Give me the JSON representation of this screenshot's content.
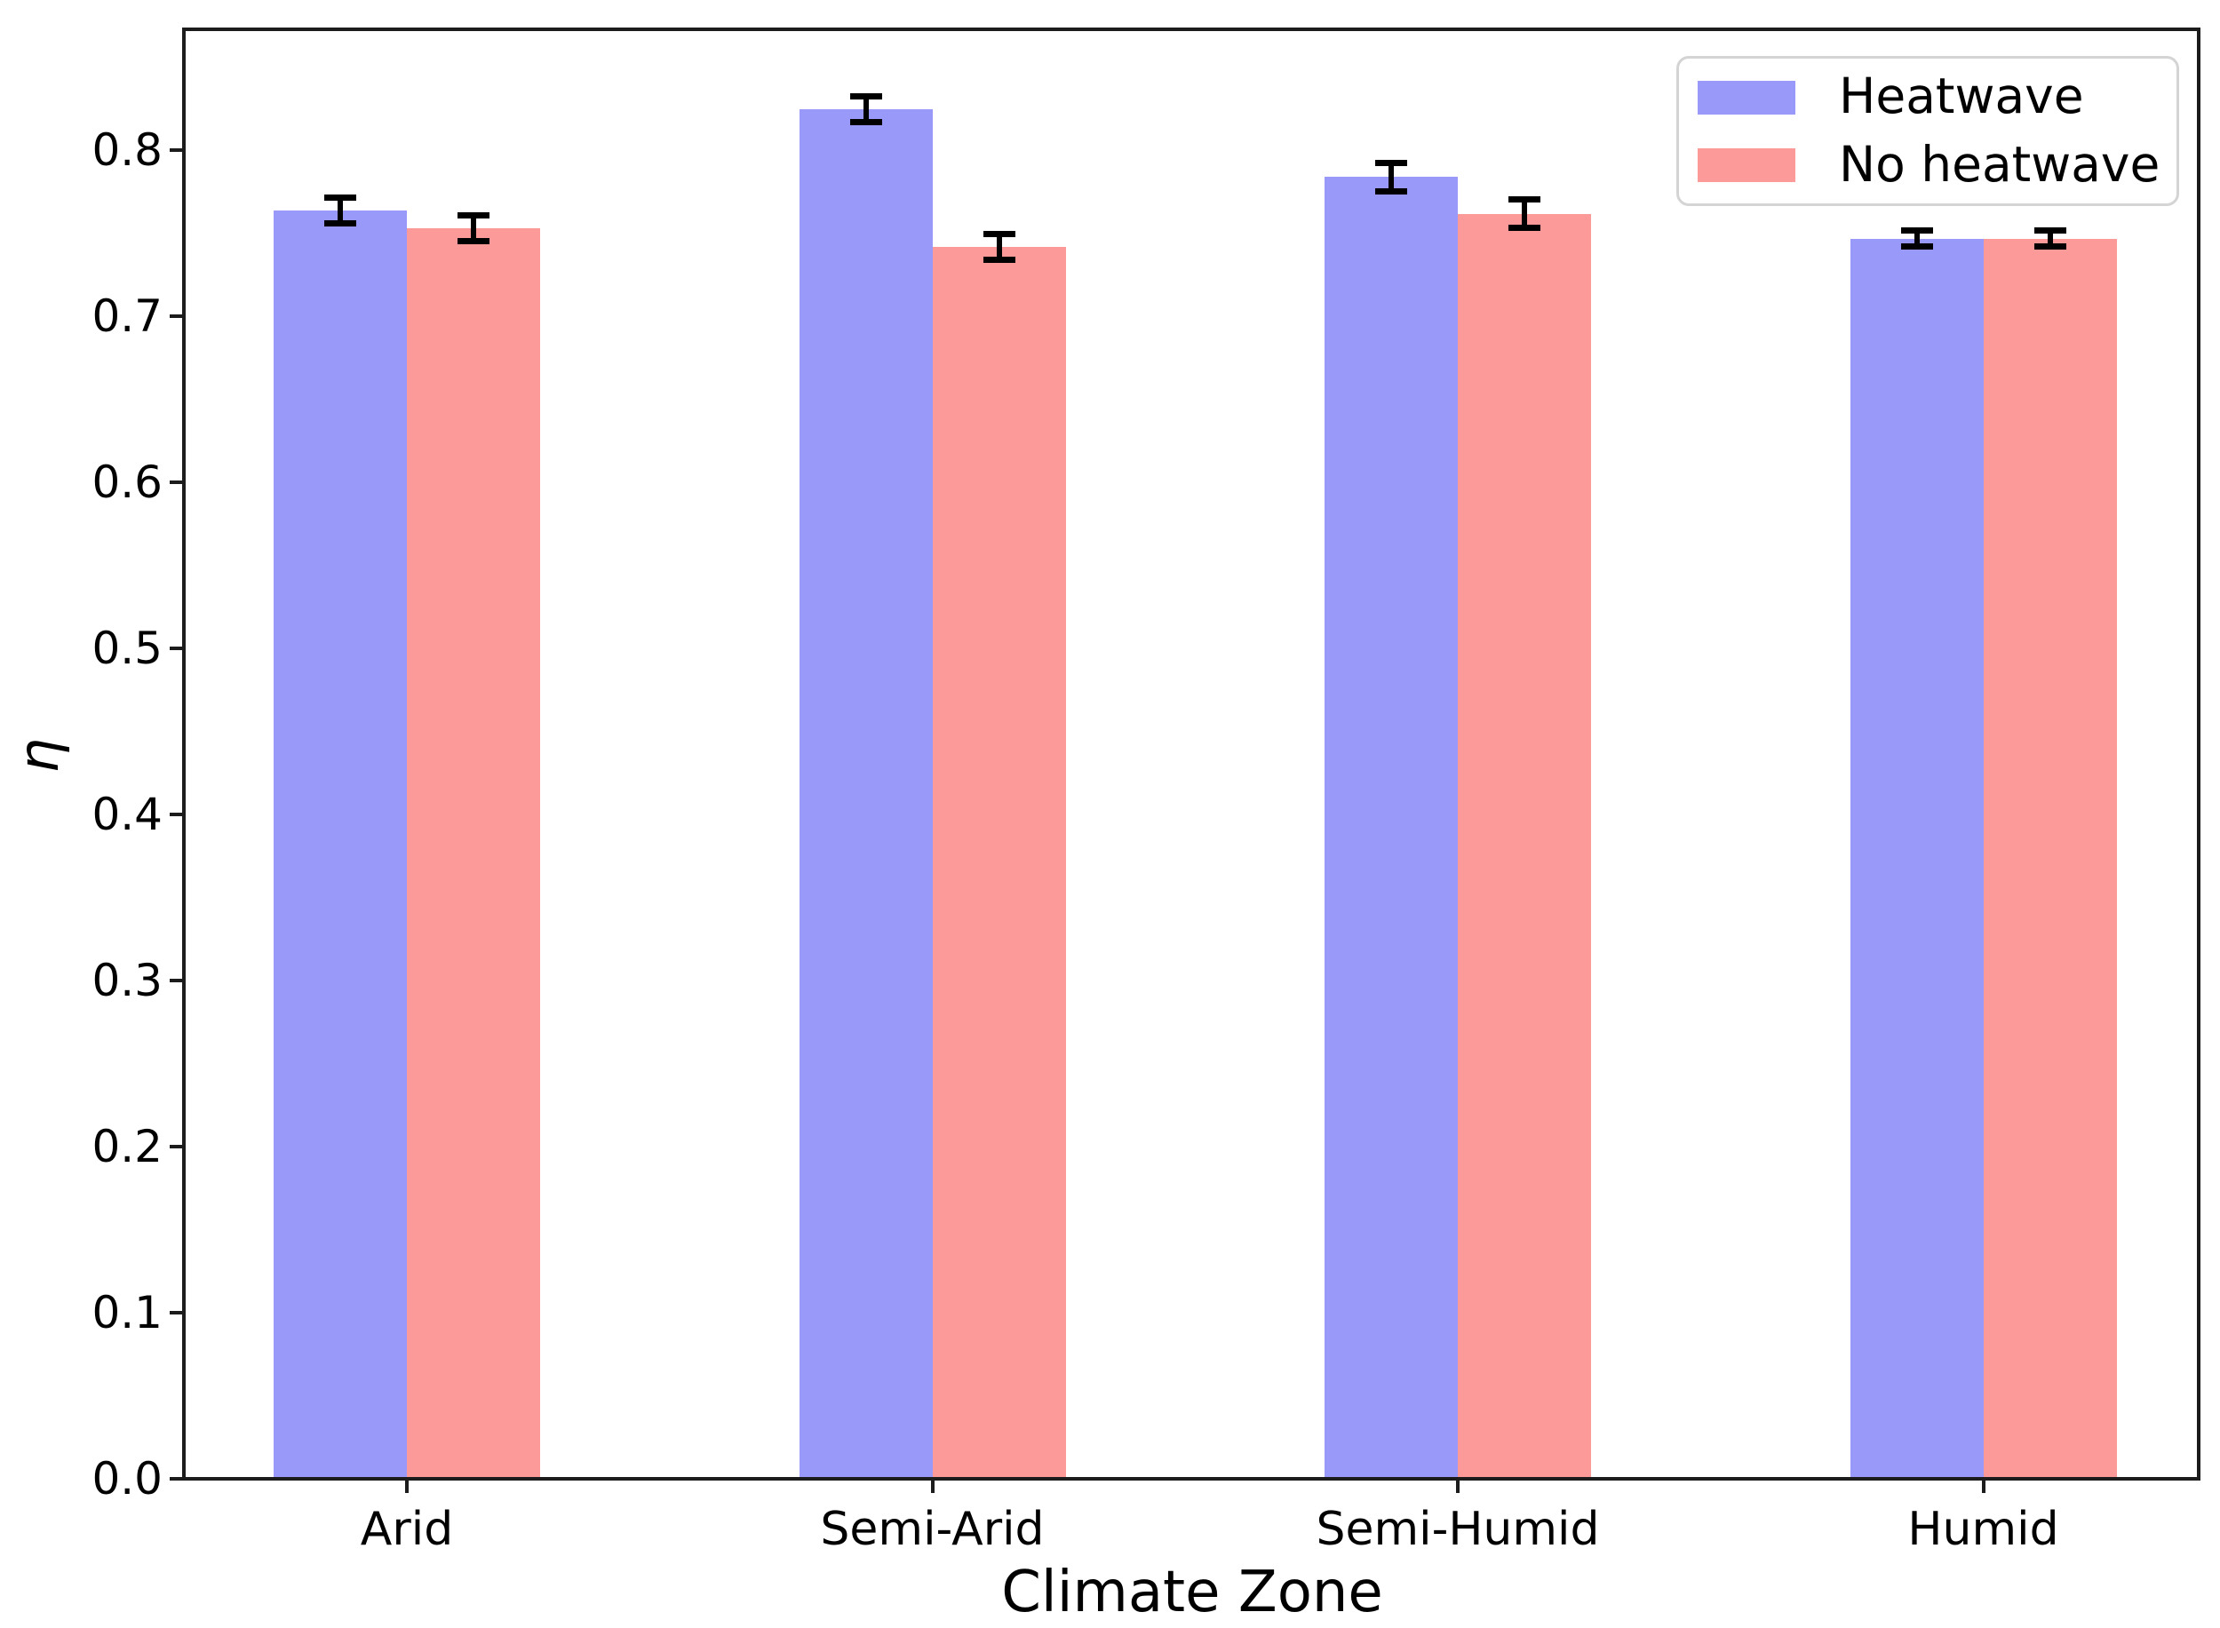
{
  "chart_data": {
    "type": "bar",
    "title": "",
    "xlabel": "Climate Zone",
    "ylabel": "η",
    "categories": [
      "Arid",
      "Semi-Arid",
      "Semi-Humid",
      "Humid"
    ],
    "series": [
      {
        "name": "Heatwave",
        "color": "#9999fa",
        "values": [
          0.764,
          0.825,
          0.784,
          0.747
        ],
        "errors": [
          0.008,
          0.008,
          0.009,
          0.005
        ]
      },
      {
        "name": "No heatwave",
        "color": "#fc9a99",
        "values": [
          0.753,
          0.742,
          0.762,
          0.747
        ],
        "errors": [
          0.008,
          0.008,
          0.009,
          0.005
        ]
      }
    ],
    "ylim": [
      0,
      0.873
    ],
    "yticks": [
      0.0,
      0.1,
      0.2,
      0.3,
      0.4,
      0.5,
      0.6,
      0.7,
      0.8
    ],
    "ytick_labels": [
      "0.0",
      "0.1",
      "0.2",
      "0.3",
      "0.4",
      "0.5",
      "0.6",
      "0.7",
      "0.8"
    ],
    "grid": false,
    "legend_position": "upper right",
    "error_bar_color": "#000000",
    "axis_color": "#1c1c1c",
    "background_color": "#ffffff"
  }
}
